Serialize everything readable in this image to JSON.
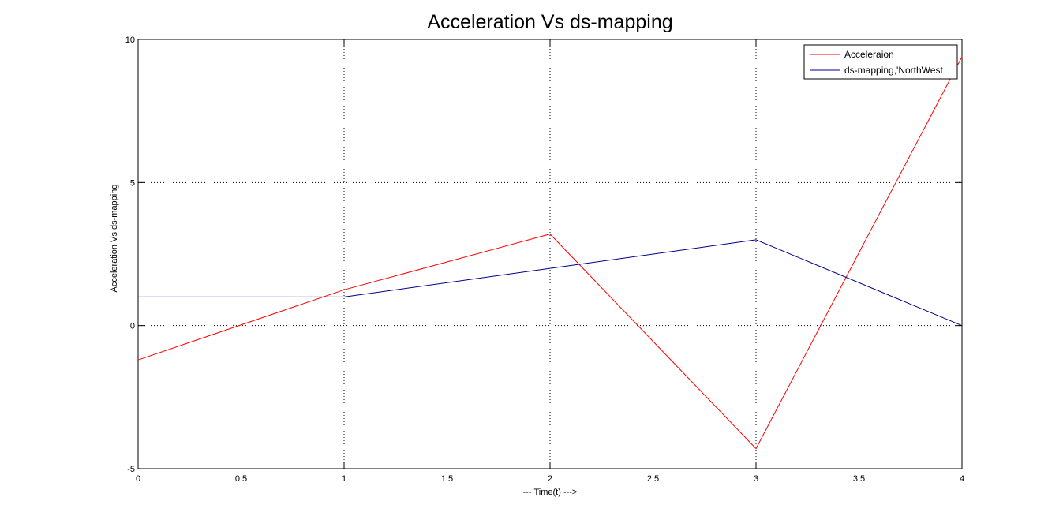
{
  "chart_data": {
    "type": "line",
    "title": "Acceleration Vs ds-mapping",
    "xlabel": "--- Time(t) --->",
    "ylabel": "Acceleration Vs ds-mapping",
    "xlim": [
      0,
      4
    ],
    "ylim": [
      -5,
      10
    ],
    "xticks": [
      0,
      0.5,
      1,
      1.5,
      2,
      2.5,
      3,
      3.5,
      4
    ],
    "xtick_labels": [
      "0",
      "0.5",
      "1",
      "1.5",
      "2",
      "2.5",
      "3",
      "3.5",
      "4"
    ],
    "yticks": [
      -5,
      0,
      5,
      10
    ],
    "ytick_labels": [
      "-5",
      "0",
      "5",
      "10"
    ],
    "grid": true,
    "grid_style": "dotted",
    "legend_position": "top-right",
    "series": [
      {
        "name": "Acceleraion",
        "color": "#ff0000",
        "x": [
          0,
          1,
          2,
          3,
          4
        ],
        "y": [
          -1.2,
          1.25,
          3.2,
          -4.3,
          9.4
        ]
      },
      {
        "name": "ds-mapping,'NorthWest",
        "color": "#00008b",
        "x": [
          0,
          1,
          2,
          3,
          4
        ],
        "y": [
          1,
          1,
          2,
          3,
          0
        ]
      }
    ]
  }
}
